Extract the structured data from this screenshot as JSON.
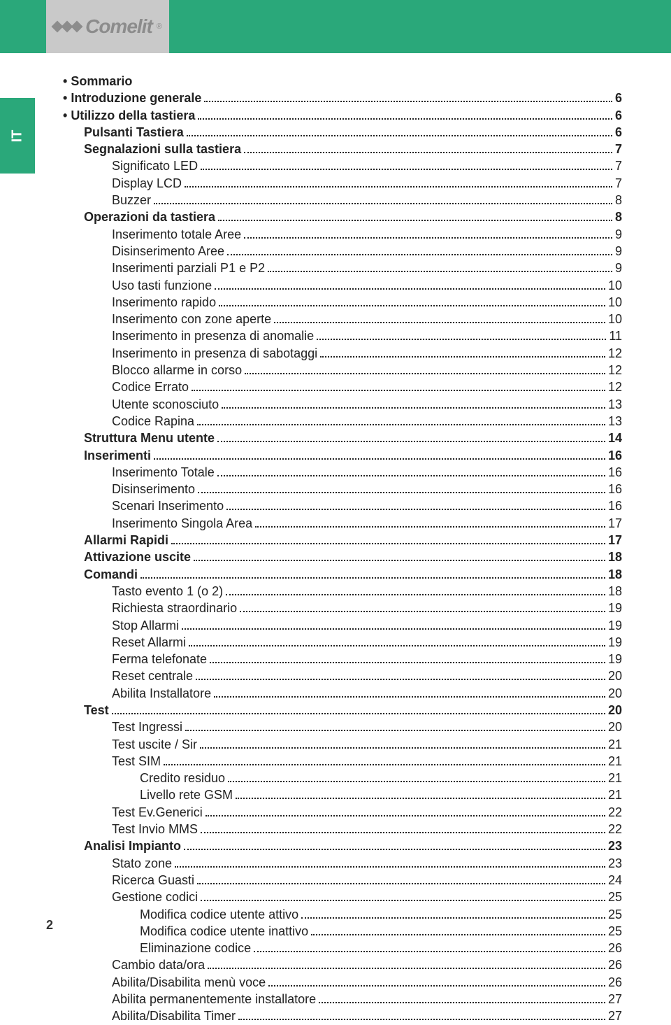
{
  "brand": "Comelit",
  "side_tab_label": "IT",
  "page_number": "2",
  "colors": {
    "header_bg": "#2aa87a",
    "grey_block": "#c9c9c9",
    "logo_grey": "#8c8c8c",
    "text": "#222222"
  },
  "toc": [
    {
      "label": "Sommario",
      "page": "",
      "level": 0,
      "bold": true,
      "bullet": true,
      "nodots": true
    },
    {
      "label": "Introduzione generale",
      "page": "6",
      "level": 0,
      "bold": true,
      "bullet": true
    },
    {
      "label": "Utilizzo della tastiera",
      "page": "6",
      "level": 0,
      "bold": true,
      "bullet": true
    },
    {
      "label": "Pulsanti Tastiera",
      "page": "6",
      "level": 1,
      "bold": true
    },
    {
      "label": "Segnalazioni sulla tastiera",
      "page": "7",
      "level": 1,
      "bold": true
    },
    {
      "label": "Significato LED",
      "page": "7",
      "level": 2
    },
    {
      "label": "Display LCD",
      "page": "7",
      "level": 2
    },
    {
      "label": "Buzzer",
      "page": "8",
      "level": 2
    },
    {
      "label": "Operazioni da tastiera",
      "page": "8",
      "level": 1,
      "bold": true
    },
    {
      "label": "Inserimento totale Aree",
      "page": "9",
      "level": 2
    },
    {
      "label": "Disinserimento Aree",
      "page": "9",
      "level": 2
    },
    {
      "label": "Inserimenti parziali P1 e P2",
      "page": "9",
      "level": 2
    },
    {
      "label": "Uso tasti funzione",
      "page": "10",
      "level": 2
    },
    {
      "label": "Inserimento rapido",
      "page": "10",
      "level": 2
    },
    {
      "label": "Inserimento con zone aperte",
      "page": "10",
      "level": 2
    },
    {
      "label": "Inserimento in presenza di anomalie",
      "page": "11",
      "level": 2
    },
    {
      "label": "Inserimento in presenza di sabotaggi",
      "page": "12",
      "level": 2
    },
    {
      "label": "Blocco allarme in corso",
      "page": "12",
      "level": 2
    },
    {
      "label": "Codice Errato",
      "page": "12",
      "level": 2
    },
    {
      "label": "Utente sconosciuto",
      "page": "13",
      "level": 2
    },
    {
      "label": "Codice Rapina",
      "page": "13",
      "level": 2
    },
    {
      "label": "Struttura Menu utente",
      "page": "14",
      "level": 1,
      "bold": true
    },
    {
      "label": "Inserimenti",
      "page": "16",
      "level": 1,
      "bold": true
    },
    {
      "label": "Inserimento Totale ",
      "page": "16",
      "level": 2
    },
    {
      "label": "Disinserimento",
      "page": "16",
      "level": 2
    },
    {
      "label": "Scenari Inserimento",
      "page": "16",
      "level": 2
    },
    {
      "label": "Inserimento Singola Area",
      "page": "17",
      "level": 2
    },
    {
      "label": "Allarmi Rapidi",
      "page": "17",
      "level": 1,
      "bold": true
    },
    {
      "label": "Attivazione uscite",
      "page": "18",
      "level": 1,
      "bold": true
    },
    {
      "label": "Comandi",
      "page": "18",
      "level": 1,
      "bold": true
    },
    {
      "label": "Tasto evento 1 (o 2)",
      "page": "18",
      "level": 2
    },
    {
      "label": "Richiesta straordinario",
      "page": "19",
      "level": 2
    },
    {
      "label": "Stop Allarmi",
      "page": "19",
      "level": 2
    },
    {
      "label": "Reset Allarmi",
      "page": "19",
      "level": 2
    },
    {
      "label": "Ferma telefonate",
      "page": "19",
      "level": 2
    },
    {
      "label": "Reset centrale",
      "page": "20",
      "level": 2
    },
    {
      "label": "Abilita Installatore ",
      "page": "20",
      "level": 2
    },
    {
      "label": "Test",
      "page": "20",
      "level": 1,
      "bold": true
    },
    {
      "label": "Test Ingressi",
      "page": "20",
      "level": 2
    },
    {
      "label": "Test uscite / Sir",
      "page": "21",
      "level": 2
    },
    {
      "label": "Test SIM",
      "page": "21",
      "level": 2
    },
    {
      "label": "Credito residuo",
      "page": "21",
      "level": 3
    },
    {
      "label": "Livello rete GSM",
      "page": "21",
      "level": 3
    },
    {
      "label": "Test Ev.Generici",
      "page": "22",
      "level": 2
    },
    {
      "label": "Test Invio MMS",
      "page": "22",
      "level": 2
    },
    {
      "label": "Analisi Impianto",
      "page": "23",
      "level": 1,
      "bold": true
    },
    {
      "label": "Stato zone",
      "page": "23",
      "level": 2
    },
    {
      "label": "Ricerca Guasti",
      "page": "24",
      "level": 2
    },
    {
      "label": "Gestione codici",
      "page": "25",
      "level": 2
    },
    {
      "label": "Modifica codice utente attivo",
      "page": "25",
      "level": 3
    },
    {
      "label": "Modifica codice utente inattivo ",
      "page": "25",
      "level": 3
    },
    {
      "label": "Eliminazione codice",
      "page": "26",
      "level": 3
    },
    {
      "label": "Cambio data/ora",
      "page": "26",
      "level": 2
    },
    {
      "label": "Abilita/Disabilita menù voce",
      "page": "26",
      "level": 2
    },
    {
      "label": "Abilita permanentemente installatore ",
      "page": "27",
      "level": 2
    },
    {
      "label": "Abilita/Disabilita Timer",
      "page": "27",
      "level": 2
    }
  ]
}
